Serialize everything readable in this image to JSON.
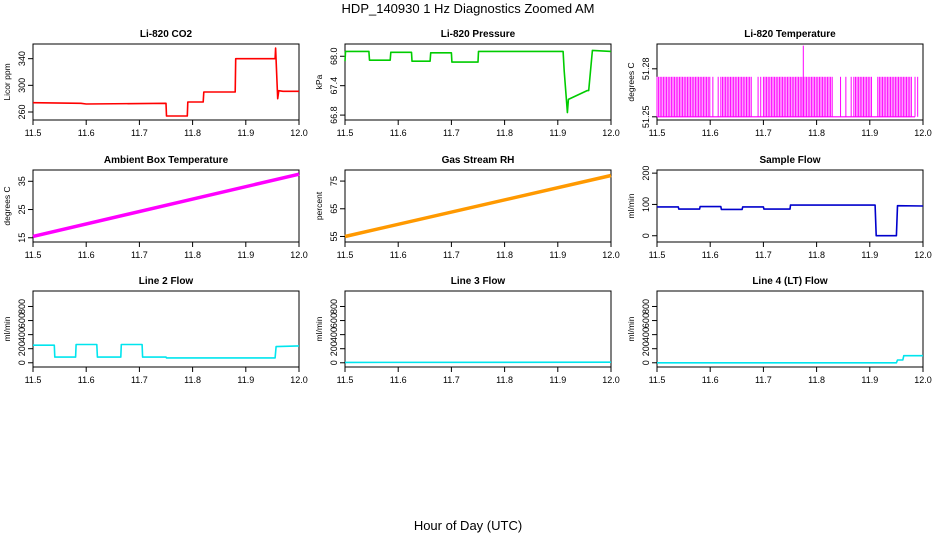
{
  "page": {
    "title": "HDP_140930  1 Hz Diagnostics Zoomed AM",
    "xlabel": "Hour of Day (UTC)"
  },
  "chart_data": [
    {
      "type": "line",
      "title": "Li-820 CO2",
      "ylabel": "Licor ppm",
      "color": "#ff0000",
      "xlim": [
        11.5,
        12.0
      ],
      "xticks": [
        11.5,
        11.6,
        11.7,
        11.8,
        11.9,
        12.0
      ],
      "ylim": [
        248,
        362
      ],
      "yticks": [
        260,
        300,
        340
      ],
      "series": [
        {
          "name": "Li-820 CO2",
          "x": [
            11.5,
            11.59,
            11.6,
            11.75,
            11.751,
            11.79,
            11.791,
            11.82,
            11.821,
            11.88,
            11.881,
            11.955,
            11.956,
            11.96,
            11.962,
            11.97,
            12.0
          ],
          "y": [
            274,
            273,
            272,
            273,
            254,
            254,
            275,
            275,
            290,
            290,
            340,
            340,
            356,
            280,
            292,
            291,
            291
          ]
        }
      ]
    },
    {
      "type": "line",
      "title": "Li-820 Pressure",
      "ylabel": "kPa",
      "color": "#00cc00",
      "xlim": [
        11.5,
        12.0
      ],
      "xticks": [
        11.5,
        11.6,
        11.7,
        11.8,
        11.9,
        12.0
      ],
      "ylim": [
        66.7,
        68.25
      ],
      "yticks": [
        66.8,
        67.4,
        68.0
      ],
      "series": [
        {
          "name": "Li-820 Pressure",
          "x": [
            11.5,
            11.501,
            11.545,
            11.546,
            11.585,
            11.586,
            11.625,
            11.626,
            11.66,
            11.661,
            11.7,
            11.701,
            11.75,
            11.751,
            11.91,
            11.912,
            11.918,
            11.92,
            11.955,
            11.958,
            11.965,
            12.0
          ],
          "y": [
            67.9,
            68.1,
            68.1,
            67.92,
            67.92,
            68.08,
            68.08,
            67.9,
            67.9,
            68.07,
            68.07,
            67.88,
            67.88,
            68.1,
            68.1,
            67.7,
            66.85,
            67.12,
            67.3,
            67.3,
            68.12,
            68.1
          ]
        }
      ]
    },
    {
      "type": "line",
      "title": "Li-820 Temperature",
      "ylabel": "degrees C",
      "color": "#ff00ff",
      "xlim": [
        11.5,
        12.0
      ],
      "xticks": [
        11.5,
        11.6,
        11.7,
        11.8,
        11.9,
        12.0
      ],
      "ylim": [
        51.248,
        51.2955
      ],
      "yticks": [
        51.25,
        51.28
      ],
      "low": 51.25,
      "high": 51.275,
      "spike_x": 11.775,
      "spike_y": 51.2945,
      "series": [
        {
          "name": "Li-820 Temperature",
          "dense": [
            [
              11.5,
              11.6
            ],
            [
              11.62,
              11.68
            ],
            [
              11.7,
              11.83
            ],
            [
              11.87,
              11.905
            ],
            [
              11.915,
              11.98
            ]
          ],
          "sparse": [
            11.605,
            11.615,
            11.69,
            11.695,
            11.845,
            11.855,
            11.865,
            11.985,
            11.99
          ]
        }
      ]
    },
    {
      "type": "line",
      "title": "Ambient Box Temperature",
      "ylabel": "degrees C",
      "color": "#ff00ff",
      "xlim": [
        11.5,
        12.0
      ],
      "xticks": [
        11.5,
        11.6,
        11.7,
        11.8,
        11.9,
        12.0
      ],
      "ylim": [
        13.5,
        39
      ],
      "yticks": [
        15,
        25,
        35
      ],
      "series": [
        {
          "name": "Ambient Box Temperature",
          "x": [
            11.5,
            12.0
          ],
          "y": [
            15.5,
            37.5
          ]
        }
      ]
    },
    {
      "type": "line",
      "title": "Gas Stream RH",
      "ylabel": "percent",
      "color": "#ff9900",
      "xlim": [
        11.5,
        12.0
      ],
      "xticks": [
        11.5,
        11.6,
        11.7,
        11.8,
        11.9,
        12.0
      ],
      "ylim": [
        53,
        79
      ],
      "yticks": [
        55,
        65,
        75
      ],
      "series": [
        {
          "name": "Gas Stream RH",
          "x": [
            11.5,
            12.0
          ],
          "y": [
            55,
            77
          ]
        }
      ]
    },
    {
      "type": "line",
      "title": "Sample Flow",
      "ylabel": "ml/min",
      "color": "#0000cc",
      "xlim": [
        11.5,
        12.0
      ],
      "xticks": [
        11.5,
        11.6,
        11.7,
        11.8,
        11.9,
        12.0
      ],
      "ylim": [
        -20,
        210
      ],
      "yticks": [
        0,
        100,
        200
      ],
      "series": [
        {
          "name": "Sample Flow",
          "x": [
            11.5,
            11.54,
            11.541,
            11.58,
            11.581,
            11.62,
            11.621,
            11.66,
            11.661,
            11.7,
            11.701,
            11.75,
            11.751,
            11.91,
            11.912,
            11.95,
            11.952,
            12.0
          ],
          "y": [
            92,
            92,
            85,
            85,
            93,
            93,
            84,
            84,
            92,
            92,
            85,
            85,
            98,
            98,
            0,
            0,
            96,
            95
          ]
        }
      ]
    },
    {
      "type": "line",
      "title": "Line 2 Flow",
      "ylabel": "ml/min",
      "color": "#00e5ee",
      "xlim": [
        11.5,
        12.0
      ],
      "xticks": [
        11.5,
        11.6,
        11.7,
        11.8,
        11.9,
        12.0
      ],
      "ylim": [
        -60,
        1020
      ],
      "yticks": [
        0,
        200,
        400,
        600,
        800
      ],
      "series": [
        {
          "name": "Line 2 Flow",
          "x": [
            11.5,
            11.54,
            11.541,
            11.58,
            11.581,
            11.62,
            11.621,
            11.665,
            11.666,
            11.705,
            11.706,
            11.75,
            11.751,
            11.955,
            11.957,
            12.0
          ],
          "y": [
            250,
            250,
            80,
            80,
            260,
            260,
            80,
            80,
            260,
            260,
            80,
            80,
            70,
            70,
            230,
            240
          ]
        }
      ]
    },
    {
      "type": "line",
      "title": "Line 3 Flow",
      "ylabel": "ml/min",
      "color": "#00e5ee",
      "xlim": [
        11.5,
        12.0
      ],
      "xticks": [
        11.5,
        11.6,
        11.7,
        11.8,
        11.9,
        12.0
      ],
      "ylim": [
        -60,
        1020
      ],
      "yticks": [
        0,
        200,
        400,
        600,
        800
      ],
      "series": [
        {
          "name": "Line 3 Flow",
          "x": [
            11.5,
            12.0
          ],
          "y": [
            5,
            8
          ]
        }
      ]
    },
    {
      "type": "line",
      "title": "Line 4 (LT) Flow",
      "ylabel": "ml/min",
      "color": "#00e5ee",
      "xlim": [
        11.5,
        12.0
      ],
      "xticks": [
        11.5,
        11.6,
        11.7,
        11.8,
        11.9,
        12.0
      ],
      "ylim": [
        -60,
        1020
      ],
      "yticks": [
        0,
        200,
        400,
        600,
        800
      ],
      "series": [
        {
          "name": "Line 4 (LT) Flow",
          "x": [
            11.5,
            11.95,
            11.952,
            11.962,
            11.964,
            12.0
          ],
          "y": [
            0,
            0,
            40,
            40,
            100,
            100
          ]
        }
      ]
    }
  ]
}
